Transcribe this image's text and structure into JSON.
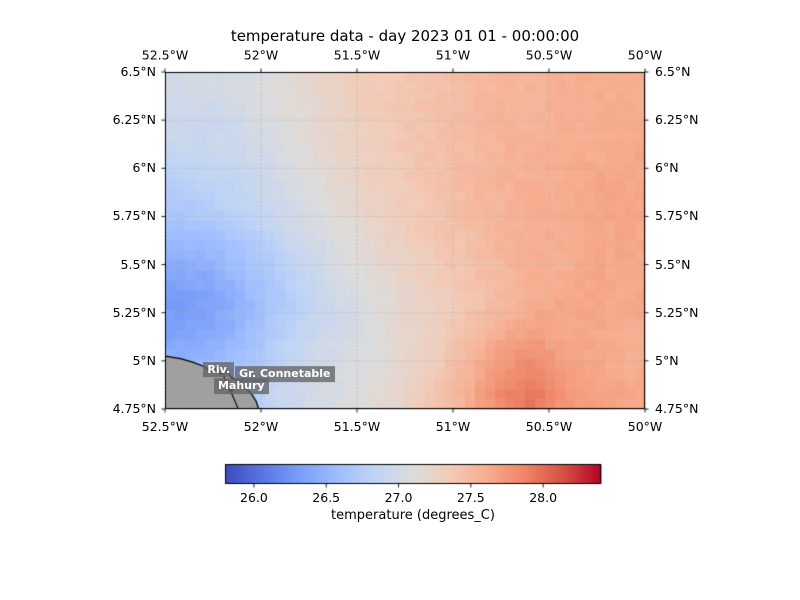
{
  "chart_data": {
    "type": "heatmap",
    "title": "temperature data - day 2023 01 01 - 00:00:00",
    "x_axis": {
      "range": [
        -52.5,
        -50.0
      ],
      "tick_values": [
        -52.5,
        -52.0,
        -51.5,
        -51.0,
        -50.5,
        -50.0
      ],
      "tick_labels": [
        "52.5°W",
        "52°W",
        "51.5°W",
        "51°W",
        "50.5°W",
        "50°W"
      ]
    },
    "y_axis": {
      "range": [
        4.75,
        6.5
      ],
      "tick_values": [
        6.5,
        6.25,
        6.0,
        5.75,
        5.5,
        5.25,
        5.0,
        4.75
      ],
      "tick_labels": [
        "6.5°N",
        "6.25°N",
        "6°N",
        "5.75°N",
        "5.5°N",
        "5.25°N",
        "5°N",
        "4.75°N"
      ]
    },
    "grid": {
      "style": "dotted",
      "color": "#b0b0b0"
    },
    "colormap": {
      "name": "coolwarm",
      "stops": [
        [
          0.0,
          "#3b4cc0"
        ],
        [
          0.1,
          "#5977e3"
        ],
        [
          0.2,
          "#7b9ff9"
        ],
        [
          0.3,
          "#9ebeff"
        ],
        [
          0.4,
          "#c0d4f5"
        ],
        [
          0.5,
          "#dddcdc"
        ],
        [
          0.6,
          "#f2cbb7"
        ],
        [
          0.7,
          "#f7ac8e"
        ],
        [
          0.8,
          "#ee8468"
        ],
        [
          0.9,
          "#d65244"
        ],
        [
          1.0,
          "#b40426"
        ]
      ]
    },
    "colorbar": {
      "label": "temperature (degrees_C)",
      "orientation": "horizontal",
      "vmin": 25.8,
      "vmax": 28.4,
      "tick_values": [
        26.0,
        26.5,
        27.0,
        27.5,
        28.0
      ],
      "tick_labels": [
        "26.0",
        "26.5",
        "27.0",
        "27.5",
        "28.0"
      ]
    },
    "values": [
      [
        27.0,
        27.0,
        27.05,
        27.1,
        27.2,
        27.3,
        27.35,
        27.4,
        27.45,
        27.5,
        27.55,
        27.55,
        27.6,
        27.6,
        27.6
      ],
      [
        26.95,
        26.95,
        27.0,
        27.1,
        27.15,
        27.25,
        27.35,
        27.4,
        27.45,
        27.5,
        27.55,
        27.55,
        27.6,
        27.6,
        27.6
      ],
      [
        26.9,
        26.9,
        26.95,
        27.05,
        27.15,
        27.25,
        27.3,
        27.4,
        27.45,
        27.5,
        27.55,
        27.6,
        27.6,
        27.6,
        27.65
      ],
      [
        26.8,
        26.85,
        26.9,
        27.0,
        27.1,
        27.2,
        27.3,
        27.35,
        27.45,
        27.5,
        27.55,
        27.6,
        27.6,
        27.65,
        27.65
      ],
      [
        26.7,
        26.75,
        26.85,
        26.95,
        27.05,
        27.15,
        27.25,
        27.35,
        27.4,
        27.5,
        27.55,
        27.6,
        27.6,
        27.65,
        27.65
      ],
      [
        26.55,
        26.6,
        26.7,
        26.85,
        27.0,
        27.1,
        27.2,
        27.3,
        27.4,
        27.45,
        27.55,
        27.6,
        27.6,
        27.65,
        27.65
      ],
      [
        26.4,
        26.45,
        26.6,
        26.75,
        26.9,
        27.05,
        27.15,
        27.25,
        27.35,
        27.45,
        27.5,
        27.6,
        27.6,
        27.65,
        27.65
      ],
      [
        26.3,
        26.35,
        26.5,
        26.7,
        26.85,
        27.0,
        27.1,
        27.2,
        27.3,
        27.4,
        27.5,
        27.6,
        27.65,
        27.65,
        27.65
      ],
      [
        26.35,
        26.4,
        26.55,
        26.75,
        26.9,
        27.0,
        27.1,
        27.2,
        27.3,
        27.45,
        27.6,
        27.7,
        27.65,
        27.65,
        27.6
      ],
      [
        26.5,
        26.55,
        26.65,
        26.8,
        26.95,
        27.05,
        27.1,
        27.2,
        27.35,
        27.55,
        27.75,
        27.85,
        27.7,
        27.65,
        27.6
      ],
      [
        26.65,
        26.7,
        26.75,
        26.9,
        27.0,
        27.05,
        27.15,
        27.25,
        27.4,
        27.6,
        27.85,
        27.95,
        27.75,
        27.7,
        27.65
      ]
    ],
    "land": {
      "fill_color": "#a0a0a0",
      "coast_color": "#000000",
      "coast": [
        [
          -52.5,
          5.025
        ],
        [
          -52.42,
          5.012
        ],
        [
          -52.36,
          4.995
        ],
        [
          -52.3,
          4.972
        ],
        [
          -52.265,
          4.948
        ],
        [
          -52.235,
          4.958
        ],
        [
          -52.208,
          4.93
        ],
        [
          -52.178,
          4.946
        ],
        [
          -52.156,
          4.916
        ],
        [
          -52.12,
          4.895
        ],
        [
          -52.083,
          4.863
        ],
        [
          -52.052,
          4.832
        ],
        [
          -52.026,
          4.792
        ],
        [
          -52.012,
          4.75
        ]
      ],
      "river": [
        [
          -52.195,
          4.92
        ],
        [
          -52.175,
          4.872
        ],
        [
          -52.148,
          4.82
        ],
        [
          -52.127,
          4.77
        ],
        [
          -52.118,
          4.75
        ]
      ],
      "island_marker": {
        "lon": -52.155,
        "lat": 4.85,
        "radius_px": 2.2
      }
    },
    "place_labels": [
      {
        "text": "Riv.",
        "lon": -52.3,
        "lat": 4.955
      },
      {
        "text": "Gr. Connetable",
        "lon": -52.135,
        "lat": 4.93
      },
      {
        "text": "Mahury",
        "lon": -52.245,
        "lat": 4.87
      }
    ]
  }
}
